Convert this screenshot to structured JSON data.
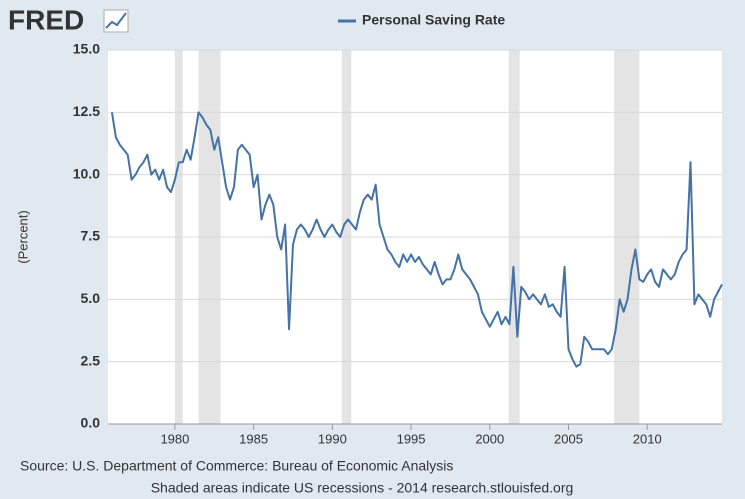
{
  "logo": "FRED",
  "chart_data": {
    "type": "line",
    "title": "Personal Saving Rate",
    "ylabel": "(Percent)",
    "source": "Source: U.S. Department of Commerce: Bureau of Economic Analysis",
    "note": "Shaded areas indicate US recessions - 2014 research.stlouisfed.org",
    "xlim": [
      1975.75,
      2014.75
    ],
    "xticks": [
      1980,
      1985,
      1990,
      1995,
      2000,
      2005,
      2010
    ],
    "ylim": [
      0,
      15
    ],
    "yticks": [
      {
        "value": 0,
        "label": "0.0"
      },
      2.5,
      {
        "value": 5,
        "label": "5.0"
      },
      7.5,
      {
        "value": 10,
        "label": "10.0"
      },
      12.5,
      {
        "value": 15,
        "label": "15.0"
      }
    ],
    "grid": true,
    "recessions": [
      [
        1980.0,
        1980.5
      ],
      [
        1981.5,
        1982.9
      ],
      [
        1990.6,
        1991.2
      ],
      [
        2001.2,
        2001.9
      ],
      [
        2007.9,
        2009.5
      ]
    ],
    "series": [
      {
        "name": "Personal Saving Rate",
        "color": "#4572a7",
        "x": [
          1976,
          1976.25,
          1976.5,
          1976.75,
          1977,
          1977.25,
          1977.5,
          1977.75,
          1978,
          1978.25,
          1978.5,
          1978.75,
          1979,
          1979.25,
          1979.5,
          1979.75,
          1980,
          1980.25,
          1980.5,
          1980.75,
          1981,
          1981.25,
          1981.5,
          1981.75,
          1982,
          1982.25,
          1982.5,
          1982.75,
          1983,
          1983.25,
          1983.5,
          1983.75,
          1984,
          1984.25,
          1984.5,
          1984.75,
          1985,
          1985.25,
          1985.5,
          1985.75,
          1986,
          1986.25,
          1986.5,
          1986.75,
          1987,
          1987.25,
          1987.5,
          1987.75,
          1988,
          1988.25,
          1988.5,
          1988.75,
          1989,
          1989.25,
          1989.5,
          1989.75,
          1990,
          1990.25,
          1990.5,
          1990.75,
          1991,
          1991.25,
          1991.5,
          1991.75,
          1992,
          1992.25,
          1992.5,
          1992.75,
          1993,
          1993.25,
          1993.5,
          1993.75,
          1994,
          1994.25,
          1994.5,
          1994.75,
          1995,
          1995.25,
          1995.5,
          1995.75,
          1996,
          1996.25,
          1996.5,
          1996.75,
          1997,
          1997.25,
          1997.5,
          1997.75,
          1998,
          1998.25,
          1998.5,
          1998.75,
          1999,
          1999.25,
          1999.5,
          1999.75,
          2000,
          2000.25,
          2000.5,
          2000.75,
          2001,
          2001.25,
          2001.5,
          2001.75,
          2002,
          2002.25,
          2002.5,
          2002.75,
          2003,
          2003.25,
          2003.5,
          2003.75,
          2004,
          2004.25,
          2004.5,
          2004.75,
          2005,
          2005.25,
          2005.5,
          2005.75,
          2006,
          2006.25,
          2006.5,
          2006.75,
          2007,
          2007.25,
          2007.5,
          2007.75,
          2008,
          2008.25,
          2008.5,
          2008.75,
          2009,
          2009.25,
          2009.5,
          2009.75,
          2010,
          2010.25,
          2010.5,
          2010.75,
          2011,
          2011.25,
          2011.5,
          2011.75,
          2012,
          2012.25,
          2012.5,
          2012.75,
          2013,
          2013.25,
          2013.5,
          2013.75,
          2014,
          2014.25,
          2014.5,
          2014.75
        ],
        "values": [
          12.5,
          11.5,
          11.2,
          11.0,
          10.8,
          9.8,
          10.0,
          10.3,
          10.5,
          10.8,
          10.0,
          10.2,
          9.8,
          10.2,
          9.5,
          9.3,
          9.8,
          10.5,
          10.5,
          11.0,
          10.6,
          11.5,
          12.5,
          12.3,
          12.0,
          11.8,
          11.0,
          11.5,
          10.5,
          9.5,
          9.0,
          9.5,
          11.0,
          11.2,
          11.0,
          10.8,
          9.5,
          10.0,
          8.2,
          8.8,
          9.2,
          8.8,
          7.5,
          7.0,
          8.0,
          3.8,
          7.2,
          7.8,
          8.0,
          7.8,
          7.5,
          7.8,
          8.2,
          7.8,
          7.5,
          7.8,
          8.0,
          7.7,
          7.5,
          8.0,
          8.2,
          8.0,
          7.8,
          8.5,
          9.0,
          9.2,
          9.0,
          9.6,
          8.0,
          7.5,
          7.0,
          6.8,
          6.5,
          6.3,
          6.8,
          6.5,
          6.8,
          6.5,
          6.7,
          6.4,
          6.2,
          6.0,
          6.5,
          6.0,
          5.6,
          5.8,
          5.8,
          6.2,
          6.8,
          6.2,
          6.0,
          5.8,
          5.5,
          5.2,
          4.5,
          4.2,
          3.9,
          4.2,
          4.5,
          4.0,
          4.3,
          4.0,
          6.3,
          3.5,
          5.5,
          5.3,
          5.0,
          5.2,
          5.0,
          4.8,
          5.2,
          4.7,
          4.8,
          4.5,
          4.3,
          6.3,
          3.0,
          2.6,
          2.3,
          2.4,
          3.5,
          3.3,
          3.0,
          3.0,
          3.0,
          3.0,
          2.8,
          3.0,
          3.8,
          5.0,
          4.5,
          5.0,
          6.2,
          7.0,
          5.8,
          5.7,
          6.0,
          6.2,
          5.7,
          5.5,
          6.2,
          6.0,
          5.8,
          6.0,
          6.5,
          6.8,
          7.0,
          10.5,
          4.8,
          5.2,
          5.0,
          4.8,
          4.3,
          5.0,
          5.3,
          5.6
        ]
      }
    ]
  }
}
